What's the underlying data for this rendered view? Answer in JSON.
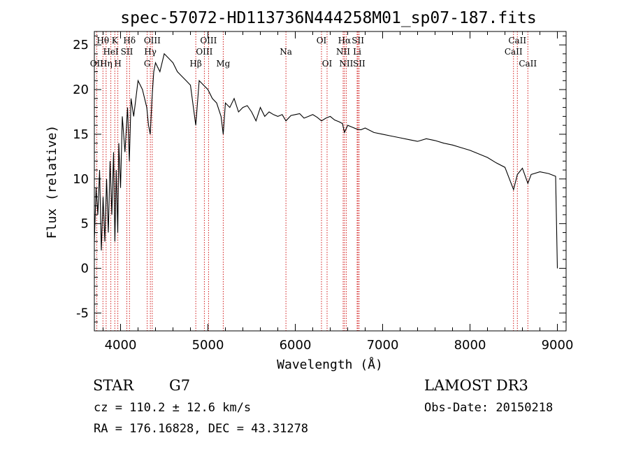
{
  "chart_data": {
    "type": "line",
    "title": "spec-57072-HD113736N444258M01_sp07-187.fits",
    "xlabel": "Wavelength (Å)",
    "ylabel": "Flux (relative)",
    "xlim": [
      3700,
      9100
    ],
    "ylim": [
      -7,
      26.5
    ],
    "x_ticks": [
      4000,
      5000,
      6000,
      7000,
      8000,
      9000
    ],
    "y_ticks": [
      -5,
      0,
      5,
      10,
      15,
      20,
      25
    ],
    "line_color": "#000000",
    "marker_color": "#cc0000",
    "series": [
      {
        "x": [
          3700,
          3720,
          3740,
          3760,
          3780,
          3800,
          3820,
          3840,
          3860,
          3880,
          3900,
          3920,
          3935,
          3950,
          3968,
          3980,
          4000,
          4020,
          4050,
          4080,
          4101,
          4120,
          4150,
          4200,
          4250,
          4300,
          4320,
          4340,
          4360,
          4380,
          4400,
          4450,
          4500,
          4550,
          4600,
          4650,
          4700,
          4750,
          4800,
          4861,
          4900,
          4950,
          5000,
          5050,
          5100,
          5150,
          5175,
          5200,
          5250,
          5300,
          5350,
          5400,
          5450,
          5500,
          5550,
          5600,
          5650,
          5700,
          5750,
          5800,
          5850,
          5893,
          5950,
          6000,
          6050,
          6100,
          6150,
          6200,
          6250,
          6300,
          6350,
          6400,
          6450,
          6500,
          6540,
          6563,
          6600,
          6650,
          6700,
          6750,
          6800,
          6900,
          7000,
          7100,
          7200,
          7300,
          7400,
          7500,
          7600,
          7700,
          7800,
          7900,
          8000,
          8100,
          8200,
          8300,
          8400,
          8498,
          8542,
          8600,
          8662,
          8700,
          8800,
          8900,
          8980,
          9000
        ],
        "y": [
          3,
          9,
          6,
          11,
          2,
          8,
          3,
          10,
          4,
          12,
          6,
          13,
          3,
          11,
          4,
          14,
          9,
          17,
          13,
          18,
          12,
          19,
          17,
          21,
          20,
          18,
          16,
          15,
          19,
          22,
          23,
          22,
          24,
          23.5,
          23,
          22,
          21.5,
          21,
          20.5,
          16,
          21,
          20.5,
          20,
          19,
          18.5,
          17,
          15,
          18.5,
          18,
          19,
          17.5,
          18,
          18.2,
          17.5,
          16.5,
          18,
          17,
          17.5,
          17.2,
          17,
          17.2,
          16.5,
          17.1,
          17.2,
          17.3,
          16.8,
          17,
          17.2,
          16.9,
          16.5,
          16.8,
          17,
          16.6,
          16.4,
          16.2,
          15.2,
          16,
          15.8,
          15.6,
          15.5,
          15.7,
          15.2,
          15,
          14.8,
          14.6,
          14.4,
          14.2,
          14.5,
          14.3,
          14,
          13.8,
          13.5,
          13.2,
          12.8,
          12.4,
          11.8,
          11.3,
          8.8,
          10.5,
          11.2,
          9.5,
          10.5,
          10.8,
          10.6,
          10.3,
          0
        ]
      }
    ],
    "lines": [
      {
        "wl": 3727,
        "label": "OII",
        "row": 3
      },
      {
        "wl": 3798,
        "label": "Hθ",
        "row": 1
      },
      {
        "wl": 3835,
        "label": "Hη",
        "row": 3
      },
      {
        "wl": 3889,
        "label": "HeI",
        "row": 2
      },
      {
        "wl": 3934,
        "label": "K",
        "row": 1
      },
      {
        "wl": 3969,
        "label": "H",
        "row": 3
      },
      {
        "wl": 4072,
        "label": "SII",
        "row": 2
      },
      {
        "wl": 4102,
        "label": "Hδ",
        "row": 1
      },
      {
        "wl": 4305,
        "label": "G",
        "row": 3
      },
      {
        "wl": 4341,
        "label": "Hγ",
        "row": 2
      },
      {
        "wl": 4363,
        "label": "OIII",
        "row": 1
      },
      {
        "wl": 4861,
        "label": "Hβ",
        "row": 3
      },
      {
        "wl": 4959,
        "label": "OIII",
        "row": 2
      },
      {
        "wl": 5007,
        "label": "OIII",
        "row": 1
      },
      {
        "wl": 5175,
        "label": "Mg",
        "row": 3
      },
      {
        "wl": 5893,
        "label": "Na",
        "row": 2
      },
      {
        "wl": 6300,
        "label": "OI",
        "row": 1
      },
      {
        "wl": 6364,
        "label": "OI",
        "row": 3
      },
      {
        "wl": 6548,
        "label": "NII",
        "row": 2
      },
      {
        "wl": 6563,
        "label": "Hα",
        "row": 1
      },
      {
        "wl": 6583,
        "label": "NII",
        "row": 3
      },
      {
        "wl": 6708,
        "label": "Li",
        "row": 2
      },
      {
        "wl": 6717,
        "label": "SII",
        "row": 1
      },
      {
        "wl": 6731,
        "label": "SII",
        "row": 3
      },
      {
        "wl": 8498,
        "label": "CaII",
        "row": 2
      },
      {
        "wl": 8542,
        "label": "CaII",
        "row": 1
      },
      {
        "wl": 8662,
        "label": "CaII",
        "row": 3
      }
    ]
  },
  "info": {
    "class": "STAR",
    "subclass": "G7",
    "survey": "LAMOST DR3",
    "cz": "cz = 110.2 ± 12.6 km/s",
    "obs_date": "Obs-Date: 20150218",
    "radec": "RA = 176.16828, DEC =  43.31278"
  }
}
